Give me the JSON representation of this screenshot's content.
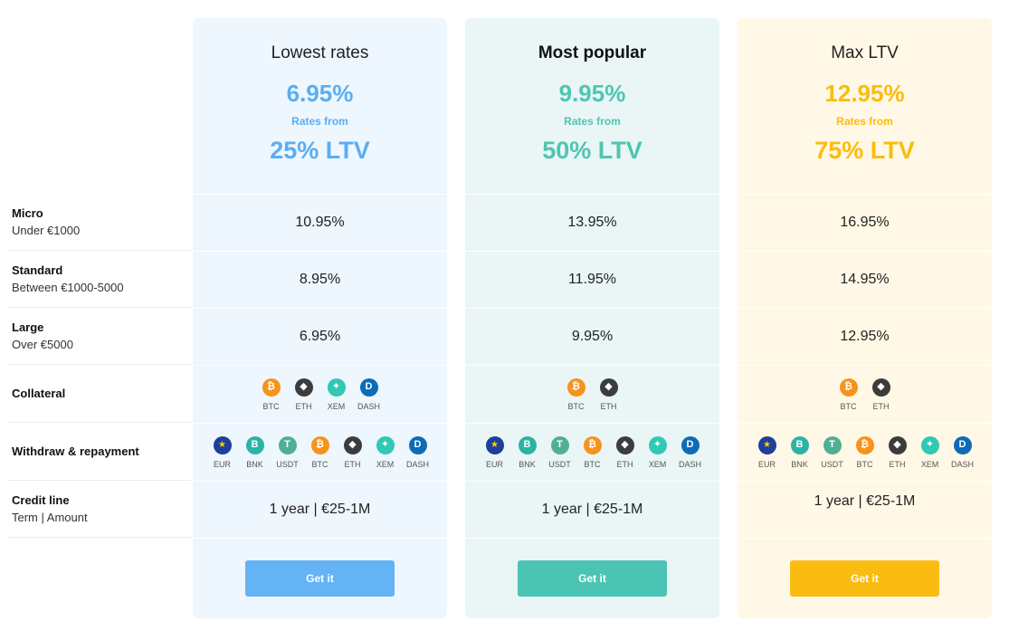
{
  "row_labels": [
    {
      "title": "Micro",
      "sub": "Under €1000"
    },
    {
      "title": "Standard",
      "sub": "Between €1000-5000"
    },
    {
      "title": "Large",
      "sub": "Over €5000"
    },
    {
      "title": "Collateral",
      "sub": ""
    },
    {
      "title": "Withdraw & repayment",
      "sub": ""
    },
    {
      "title": "Credit line",
      "sub": "Term | Amount"
    }
  ],
  "coin_colors": {
    "EUR": "#1e3f9b",
    "BNK": "#2bb3a6",
    "USDT": "#50af95",
    "BTC": "#f7931a",
    "ETH": "#3c3c3d",
    "XEM": "#31c8b4",
    "DASH": "#0d6cb5"
  },
  "coin_icons": {
    "EUR": "eu-flag-icon",
    "BNK": "bankera-icon",
    "USDT": "tether-icon",
    "BTC": "bitcoin-icon",
    "ETH": "ethereum-icon",
    "XEM": "nem-icon",
    "DASH": "dash-icon"
  },
  "plans": [
    {
      "title": "Lowest rates",
      "rate": "6.95%",
      "rates_from": "Rates from",
      "ltv": "25% LTV",
      "micro": "10.95%",
      "standard": "8.95%",
      "large": "6.95%",
      "collateral": [
        "BTC",
        "ETH",
        "XEM",
        "DASH"
      ],
      "withdraw": [
        "EUR",
        "BNK",
        "USDT",
        "BTC",
        "ETH",
        "XEM",
        "DASH"
      ],
      "credit_line": "1 year | €25-1M",
      "button": "Get it",
      "accent": "#5aaef2"
    },
    {
      "title": "Most popular",
      "rate": "9.95%",
      "rates_from": "Rates from",
      "ltv": "50% LTV",
      "micro": "13.95%",
      "standard": "11.95%",
      "large": "9.95%",
      "collateral": [
        "BTC",
        "ETH"
      ],
      "withdraw": [
        "EUR",
        "BNK",
        "USDT",
        "BTC",
        "ETH",
        "XEM",
        "DASH"
      ],
      "credit_line": "1 year | €25-1M",
      "button": "Get it",
      "accent": "#4ec6b2"
    },
    {
      "title": "Max LTV",
      "rate": "12.95%",
      "rates_from": "Rates from",
      "ltv": "75% LTV",
      "micro": "16.95%",
      "standard": "14.95%",
      "large": "12.95%",
      "collateral": [
        "BTC",
        "ETH"
      ],
      "withdraw": [
        "EUR",
        "BNK",
        "USDT",
        "BTC",
        "ETH",
        "XEM",
        "DASH"
      ],
      "credit_line": "1 year | €25-1M",
      "button": "Get it",
      "accent": "#fbbc0c"
    }
  ]
}
